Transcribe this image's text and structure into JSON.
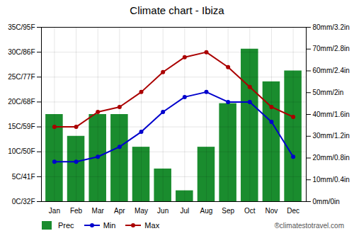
{
  "chart_data": {
    "type": "bar",
    "title": "Climate chart - Ibiza",
    "categories": [
      "Jan",
      "Feb",
      "Mar",
      "Apr",
      "May",
      "Jun",
      "Jul",
      "Aug",
      "Sep",
      "Oct",
      "Nov",
      "Dec"
    ],
    "series": [
      {
        "name": "Prec",
        "type": "bar",
        "axis": "y2",
        "color": "#1a8c2e",
        "values": [
          40,
          30,
          40,
          40,
          25,
          15,
          5,
          25,
          45,
          70,
          55,
          60
        ]
      },
      {
        "name": "Min",
        "type": "line",
        "marker": "circle",
        "color": "#0000cc",
        "values": [
          8,
          8,
          9,
          11,
          14,
          18,
          21,
          22,
          20,
          20,
          16,
          9
        ]
      },
      {
        "name": "Max",
        "type": "line",
        "marker": "circle",
        "color": "#aa0000",
        "values": [
          15,
          15,
          18,
          19,
          22,
          26,
          29,
          30,
          27,
          23,
          19,
          17
        ]
      }
    ],
    "ylim": [
      0,
      35
    ],
    "yticks": [
      {
        "value": 0,
        "label": "0C/32F"
      },
      {
        "value": 5,
        "label": "5C/41F"
      },
      {
        "value": 10,
        "label": "10C/50F"
      },
      {
        "value": 15,
        "label": "15C/59F"
      },
      {
        "value": 20,
        "label": "20C/68F"
      },
      {
        "value": 25,
        "label": "25C/77F"
      },
      {
        "value": 30,
        "label": "30C/86F"
      },
      {
        "value": 35,
        "label": "35C/95F"
      }
    ],
    "y2lim": [
      0,
      80
    ],
    "y2ticks": [
      {
        "value": 0,
        "label": "0mm/0in"
      },
      {
        "value": 10,
        "label": "10mm/0.4in"
      },
      {
        "value": 20,
        "label": "20mm/0.8in"
      },
      {
        "value": 30,
        "label": "30mm/1.2in"
      },
      {
        "value": 40,
        "label": "40mm/1.6in"
      },
      {
        "value": 50,
        "label": "50mm/2in"
      },
      {
        "value": 60,
        "label": "60mm/2.4in"
      },
      {
        "value": 70,
        "label": "70mm/2.8in"
      },
      {
        "value": 80,
        "label": "80mm/3.2in"
      }
    ],
    "grid": true,
    "legend": "bottom",
    "annotations": [
      "®climatestotravel.com"
    ]
  }
}
